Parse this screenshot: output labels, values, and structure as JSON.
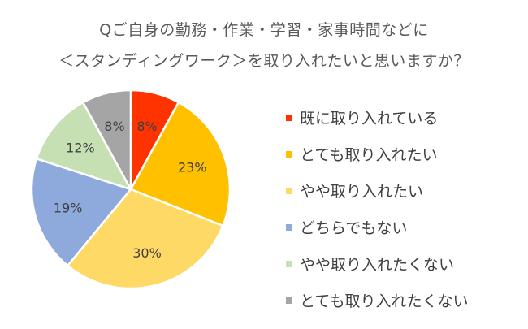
{
  "title_line1": "Qご自身の勤務・作業・学習・家事時間などに",
  "title_line2": "＜スタンディングワーク＞を取り入れたいと思いますか？",
  "chart_data": {
    "type": "pie",
    "title": "Qご自身の勤務・作業・学習・家事時間などに＜スタンディングワーク＞を取り入れたいと思いますか？",
    "legend_position": "right",
    "slices": [
      {
        "label": "既に取り入れている",
        "value": 8,
        "display": "8%",
        "color": "#FF3300"
      },
      {
        "label": "とても取り入れたい",
        "value": 23,
        "display": "23%",
        "color": "#FFC000"
      },
      {
        "label": "やや取り入れたい",
        "value": 30,
        "display": "30%",
        "color": "#FFD966"
      },
      {
        "label": "どちらでもない",
        "value": 19,
        "display": "19%",
        "color": "#8EA9DB"
      },
      {
        "label": "やや取り入れたくない",
        "value": 12,
        "display": "12%",
        "color": "#C6E0B4"
      },
      {
        "label": "とても取り入れたくない",
        "value": 8,
        "display": "8%",
        "color": "#A5A5A5"
      }
    ]
  }
}
